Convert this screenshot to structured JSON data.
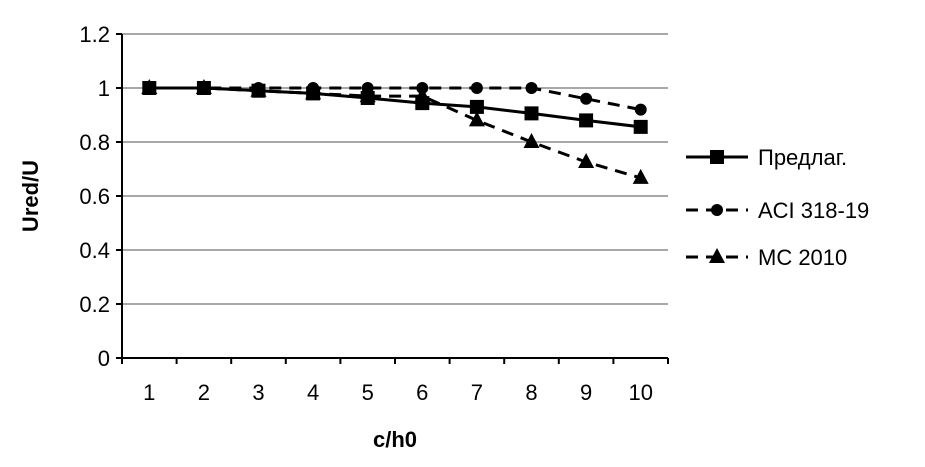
{
  "chart_data": {
    "type": "line",
    "title": "",
    "xlabel": "c/h0",
    "ylabel": "Ured/U",
    "categories": [
      "1",
      "2",
      "3",
      "4",
      "5",
      "6",
      "7",
      "8",
      "9",
      "10"
    ],
    "ylim": [
      0,
      1.2
    ],
    "yticks": [
      "0",
      "0.2",
      "0.4",
      "0.6",
      "0.8",
      "1",
      "1.2"
    ],
    "grid": true,
    "legend_position": "right",
    "series": [
      {
        "name": "Предлаг.",
        "marker": "square",
        "dash": "solid",
        "values": [
          1.0,
          1.0,
          0.99,
          0.98,
          0.963,
          0.944,
          0.93,
          0.906,
          0.88,
          0.856
        ]
      },
      {
        "name": "ACI 318-19",
        "marker": "circle",
        "dash": "dashed",
        "values": [
          1.0,
          1.0,
          1.0,
          1.0,
          1.0,
          1.0,
          1.0,
          1.0,
          0.96,
          0.92
        ]
      },
      {
        "name": "MC 2010",
        "marker": "triangle",
        "dash": "dashed",
        "values": [
          1.0,
          1.0,
          0.99,
          0.98,
          0.97,
          0.97,
          0.88,
          0.8,
          0.726,
          0.667
        ]
      }
    ]
  }
}
